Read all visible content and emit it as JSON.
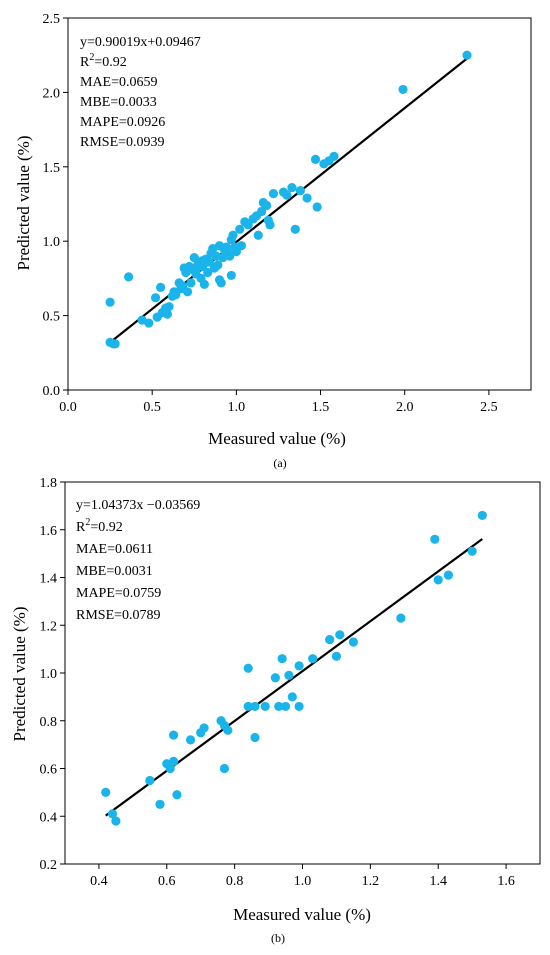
{
  "chart_data": [
    {
      "type": "scatter",
      "caption": "(a)",
      "xlabel": "Measured value (%)",
      "ylabel": "Predicted value (%)",
      "xlim": [
        0.0,
        2.75
      ],
      "ylim": [
        0.0,
        2.5
      ],
      "xticks": [
        0.0,
        0.5,
        1.0,
        1.5,
        2.0,
        2.5
      ],
      "yticks": [
        0.0,
        0.5,
        1.0,
        1.5,
        2.0,
        2.5
      ],
      "xtick_labels": [
        "0.0",
        "0.5",
        "1.0",
        "1.5",
        "2.0",
        "2.5"
      ],
      "ytick_labels": [
        "0.0",
        "0.5",
        "1.0",
        "1.5",
        "2.0",
        "2.5"
      ],
      "annotations": {
        "equation": "y=0.90019x+0.09467",
        "r2_prefix": "R",
        "r2_sup": "2",
        "r2_value": "=0.92",
        "mae": "MAE=0.0659",
        "mbe": "MBE=0.0033",
        "mape": "MAPE=0.0926",
        "rmse": "RMSE=0.0939"
      },
      "fit_line": {
        "slope": 0.90019,
        "intercept": 0.09467,
        "x_range": [
          0.25,
          2.37
        ]
      },
      "point_color": "#1ab4ea",
      "line_color": "#000000",
      "points": [
        [
          0.25,
          0.59
        ],
        [
          0.25,
          0.32
        ],
        [
          0.27,
          0.31
        ],
        [
          0.28,
          0.31
        ],
        [
          0.36,
          0.76
        ],
        [
          0.44,
          0.47
        ],
        [
          0.48,
          0.45
        ],
        [
          0.52,
          0.62
        ],
        [
          0.53,
          0.49
        ],
        [
          0.55,
          0.69
        ],
        [
          0.56,
          0.52
        ],
        [
          0.58,
          0.55
        ],
        [
          0.59,
          0.51
        ],
        [
          0.6,
          0.56
        ],
        [
          0.62,
          0.63
        ],
        [
          0.63,
          0.66
        ],
        [
          0.64,
          0.64
        ],
        [
          0.66,
          0.72
        ],
        [
          0.67,
          0.68
        ],
        [
          0.68,
          0.7
        ],
        [
          0.69,
          0.82
        ],
        [
          0.7,
          0.79
        ],
        [
          0.71,
          0.66
        ],
        [
          0.72,
          0.83
        ],
        [
          0.73,
          0.72
        ],
        [
          0.74,
          0.81
        ],
        [
          0.75,
          0.89
        ],
        [
          0.76,
          0.78
        ],
        [
          0.77,
          0.84
        ],
        [
          0.78,
          0.86
        ],
        [
          0.79,
          0.75
        ],
        [
          0.8,
          0.83
        ],
        [
          0.81,
          0.71
        ],
        [
          0.82,
          0.88
        ],
        [
          0.83,
          0.79
        ],
        [
          0.84,
          0.86
        ],
        [
          0.85,
          0.92
        ],
        [
          0.86,
          0.95
        ],
        [
          0.87,
          0.82
        ],
        [
          0.88,
          0.9
        ],
        [
          0.89,
          0.84
        ],
        [
          0.9,
          0.97
        ],
        [
          0.91,
          0.72
        ],
        [
          0.92,
          0.89
        ],
        [
          0.93,
          0.94
        ],
        [
          0.94,
          0.96
        ],
        [
          0.95,
          0.92
        ],
        [
          0.96,
          0.9
        ],
        [
          0.97,
          1.01
        ],
        [
          0.98,
          1.04
        ],
        [
          0.99,
          0.96
        ],
        [
          1.0,
          0.93
        ],
        [
          1.02,
          1.08
        ],
        [
          1.03,
          0.97
        ],
        [
          1.05,
          1.13
        ],
        [
          1.07,
          1.11
        ],
        [
          1.1,
          1.15
        ],
        [
          1.12,
          1.17
        ],
        [
          1.13,
          1.04
        ],
        [
          1.15,
          1.2
        ],
        [
          1.16,
          1.26
        ],
        [
          1.18,
          1.24
        ],
        [
          1.19,
          1.14
        ],
        [
          1.2,
          1.11
        ],
        [
          1.22,
          1.32
        ],
        [
          1.28,
          1.33
        ],
        [
          1.3,
          1.31
        ],
        [
          1.33,
          1.36
        ],
        [
          1.35,
          1.08
        ],
        [
          1.38,
          1.34
        ],
        [
          1.42,
          1.29
        ],
        [
          1.47,
          1.55
        ],
        [
          1.48,
          1.23
        ],
        [
          1.52,
          1.52
        ],
        [
          1.55,
          1.54
        ],
        [
          1.58,
          1.57
        ],
        [
          0.97,
          0.77
        ],
        [
          0.9,
          0.74
        ],
        [
          0.8,
          0.87
        ],
        [
          0.76,
          0.8
        ],
        [
          1.99,
          2.02
        ],
        [
          2.37,
          2.25
        ]
      ]
    },
    {
      "type": "scatter",
      "caption": "(b)",
      "xlabel": "Measured value (%)",
      "ylabel": "Predicted value (%)",
      "xlim": [
        0.3,
        1.7
      ],
      "ylim": [
        0.2,
        1.8
      ],
      "xticks": [
        0.4,
        0.6,
        0.8,
        1.0,
        1.2,
        1.4,
        1.6
      ],
      "yticks": [
        0.2,
        0.4,
        0.6,
        0.8,
        1.0,
        1.2,
        1.4,
        1.6,
        1.8
      ],
      "xtick_labels": [
        "0.4",
        "0.6",
        "0.8",
        "1.0",
        "1.2",
        "1.4",
        "1.6"
      ],
      "ytick_labels": [
        "0.2",
        "0.4",
        "0.6",
        "0.8",
        "1.0",
        "1.2",
        "1.4",
        "1.6",
        "1.8"
      ],
      "annotations": {
        "equation": "y=1.04373x −0.03569",
        "r2_prefix": "R",
        "r2_sup": "2",
        "r2_value": "=0.92",
        "mae": "MAE=0.0611",
        "mbe": "MBE=0.0031",
        "mape": "MAPE=0.0759",
        "rmse": "RMSE=0.0789"
      },
      "fit_line": {
        "slope": 1.04373,
        "intercept": -0.03569,
        "x_range": [
          0.42,
          1.53
        ]
      },
      "point_color": "#1ab4ea",
      "line_color": "#000000",
      "points": [
        [
          0.42,
          0.5
        ],
        [
          0.44,
          0.41
        ],
        [
          0.45,
          0.38
        ],
        [
          0.55,
          0.55
        ],
        [
          0.58,
          0.45
        ],
        [
          0.6,
          0.62
        ],
        [
          0.61,
          0.6
        ],
        [
          0.62,
          0.74
        ],
        [
          0.62,
          0.63
        ],
        [
          0.63,
          0.49
        ],
        [
          0.67,
          0.72
        ],
        [
          0.7,
          0.75
        ],
        [
          0.71,
          0.77
        ],
        [
          0.76,
          0.8
        ],
        [
          0.77,
          0.78
        ],
        [
          0.77,
          0.6
        ],
        [
          0.78,
          0.76
        ],
        [
          0.84,
          1.02
        ],
        [
          0.84,
          0.86
        ],
        [
          0.86,
          0.73
        ],
        [
          0.86,
          0.86
        ],
        [
          0.89,
          0.86
        ],
        [
          0.92,
          0.98
        ],
        [
          0.93,
          0.86
        ],
        [
          0.94,
          1.06
        ],
        [
          0.95,
          0.86
        ],
        [
          0.96,
          0.99
        ],
        [
          0.97,
          0.9
        ],
        [
          0.99,
          1.03
        ],
        [
          0.99,
          0.86
        ],
        [
          1.03,
          1.06
        ],
        [
          1.08,
          1.14
        ],
        [
          1.1,
          1.07
        ],
        [
          1.11,
          1.16
        ],
        [
          1.15,
          1.13
        ],
        [
          1.29,
          1.23
        ],
        [
          1.39,
          1.56
        ],
        [
          1.4,
          1.39
        ],
        [
          1.43,
          1.41
        ],
        [
          1.5,
          1.51
        ],
        [
          1.53,
          1.66
        ]
      ]
    }
  ]
}
